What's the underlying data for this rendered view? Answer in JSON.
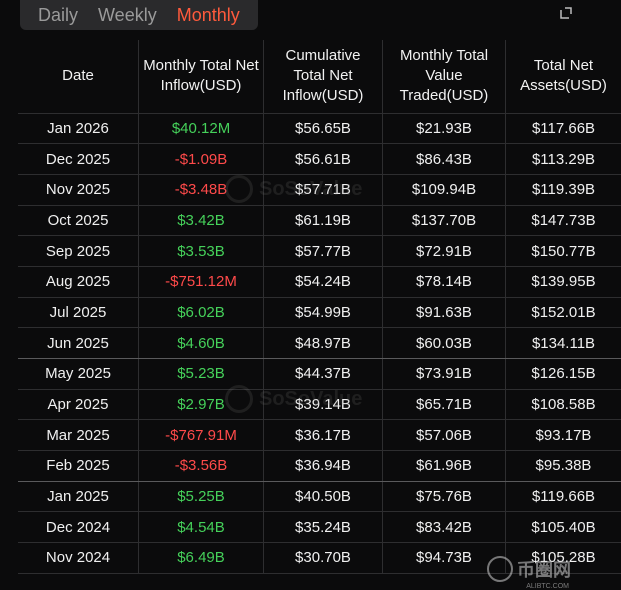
{
  "tabs": [
    {
      "label": "Daily",
      "active": false
    },
    {
      "label": "Weekly",
      "active": false
    },
    {
      "label": "Monthly",
      "active": true
    }
  ],
  "accent_color": "#ff5a3c",
  "positive_color": "#45d15a",
  "negative_color": "#ff4a4a",
  "table": {
    "headers": [
      "Date",
      "Monthly Total Net Inflow(USD)",
      "Cumulative Total Net Inflow(USD)",
      "Monthly Total Value Traded(USD)",
      "Total Net Assets(USD)"
    ],
    "rows": [
      {
        "date": "Jan 2026",
        "inflow": "$40.12M",
        "sign": "pos",
        "cumulative": "$56.65B",
        "traded": "$21.93B",
        "assets": "$117.66B"
      },
      {
        "date": "Dec 2025",
        "inflow": "-$1.09B",
        "sign": "neg",
        "cumulative": "$56.61B",
        "traded": "$86.43B",
        "assets": "$113.29B"
      },
      {
        "date": "Nov 2025",
        "inflow": "-$3.48B",
        "sign": "neg",
        "cumulative": "$57.71B",
        "traded": "$109.94B",
        "assets": "$119.39B"
      },
      {
        "date": "Oct 2025",
        "inflow": "$3.42B",
        "sign": "pos",
        "cumulative": "$61.19B",
        "traded": "$137.70B",
        "assets": "$147.73B"
      },
      {
        "date": "Sep 2025",
        "inflow": "$3.53B",
        "sign": "pos",
        "cumulative": "$57.77B",
        "traded": "$72.91B",
        "assets": "$150.77B"
      },
      {
        "date": "Aug 2025",
        "inflow": "-$751.12M",
        "sign": "neg",
        "cumulative": "$54.24B",
        "traded": "$78.14B",
        "assets": "$139.95B"
      },
      {
        "date": "Jul 2025",
        "inflow": "$6.02B",
        "sign": "pos",
        "cumulative": "$54.99B",
        "traded": "$91.63B",
        "assets": "$152.01B"
      },
      {
        "date": "Jun 2025",
        "inflow": "$4.60B",
        "sign": "pos",
        "cumulative": "$48.97B",
        "traded": "$60.03B",
        "assets": "$134.11B"
      },
      {
        "date": "May 2025",
        "inflow": "$5.23B",
        "sign": "pos",
        "cumulative": "$44.37B",
        "traded": "$73.91B",
        "assets": "$126.15B"
      },
      {
        "date": "Apr 2025",
        "inflow": "$2.97B",
        "sign": "pos",
        "cumulative": "$39.14B",
        "traded": "$65.71B",
        "assets": "$108.58B"
      },
      {
        "date": "Mar 2025",
        "inflow": "-$767.91M",
        "sign": "neg",
        "cumulative": "$36.17B",
        "traded": "$57.06B",
        "assets": "$93.17B"
      },
      {
        "date": "Feb 2025",
        "inflow": "-$3.56B",
        "sign": "neg",
        "cumulative": "$36.94B",
        "traded": "$61.96B",
        "assets": "$95.38B"
      },
      {
        "date": "Jan 2025",
        "inflow": "$5.25B",
        "sign": "pos",
        "cumulative": "$40.50B",
        "traded": "$75.76B",
        "assets": "$119.66B"
      },
      {
        "date": "Dec 2024",
        "inflow": "$4.54B",
        "sign": "pos",
        "cumulative": "$35.24B",
        "traded": "$83.42B",
        "assets": "$105.40B"
      },
      {
        "date": "Nov 2024",
        "inflow": "$6.49B",
        "sign": "pos",
        "cumulative": "$30.70B",
        "traded": "$94.73B",
        "assets": "$105.28B"
      }
    ]
  },
  "watermark": {
    "text": "SoSoValue"
  },
  "footer_mark": {
    "text": "币圈网",
    "sub": "ALIBTC.COM"
  }
}
